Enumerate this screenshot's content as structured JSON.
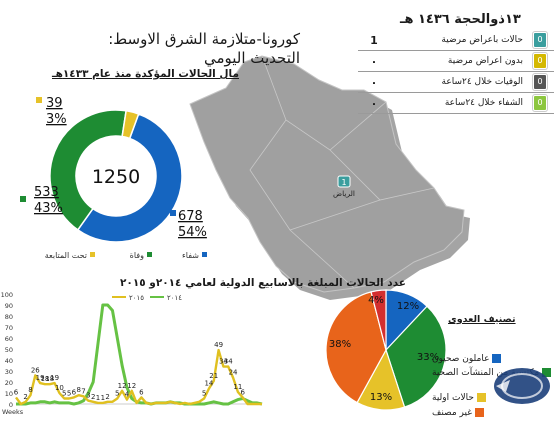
{
  "header": {
    "title_line1": "كورونا-متلازمة الشرق الاوسط:",
    "title_line2": "التحديث اليومي",
    "date": "١٣ذوالحجة ١٤٣٦ هـ"
  },
  "stats_rows": [
    {
      "value": "1",
      "label": "حالات باعراض مرضية",
      "badge": "0",
      "color": "#3a9e9e"
    },
    {
      "value": "٠",
      "label": "بدون اعراض مرضية",
      "badge": "0",
      "color": "#d4b800"
    },
    {
      "value": "٠",
      "label": "الوفيات خلال ٢٤ساعة",
      "badge": "0",
      "color": "#555555"
    },
    {
      "value": "٠",
      "label": "الشفاء خلال ٢٤ساعة",
      "badge": "0",
      "color": "#8cc63f"
    }
  ],
  "map": {
    "marker_value": "1",
    "marker_label": "الرياض",
    "colors": {
      "land": "#9e9e9e",
      "shadow": "#5a5a5a",
      "marker": "#3a9e9e"
    }
  },
  "donut_header": "مال الحالات المؤكدة منذ عام ١٤٣٣هـ",
  "weekly_header": "عدد الحالات المبلغة بالاسابيع الدولية لعامي ٢٠١٤و ٢٠١٥",
  "classification": {
    "title": "تصنيف العدوى",
    "legend": [
      "عاملون صحيون",
      "مكتسبة من المنشآت الصحية",
      "حالات اولية",
      "غير مصنف"
    ]
  },
  "colors": {
    "blue": "#1565c0",
    "green": "#1e8c33",
    "yellow": "#e6c229",
    "orange": "#e8641b",
    "red": "#d32f2f",
    "line2014": "#66c244",
    "line2015": "#e0c020"
  },
  "chart_data": [
    {
      "type": "pie",
      "subtype": "donut",
      "center_label": "1250",
      "slices": [
        {
          "label": "شفاء",
          "value": 678,
          "pct_label": "54%",
          "color": "#1565c0"
        },
        {
          "label": "وفاة",
          "value": 533,
          "pct_label": "43%",
          "color": "#1e8c33"
        },
        {
          "label": "تحت المتابعة",
          "value": 39,
          "pct_label": "3%",
          "color": "#e6c229"
        }
      ],
      "legend_placement": "bottom"
    },
    {
      "type": "line",
      "xlabel": "Weeks",
      "ylim": [
        0,
        100
      ],
      "yticks": [
        0,
        10,
        20,
        30,
        40,
        50,
        60,
        70,
        80,
        90,
        100
      ],
      "x": [
        1,
        2,
        3,
        4,
        5,
        6,
        7,
        8,
        9,
        10,
        11,
        12,
        13,
        14,
        15,
        16,
        17,
        18,
        19,
        20,
        21,
        22,
        23,
        24,
        25,
        26,
        27,
        28,
        29,
        30,
        31,
        32,
        33,
        34,
        35,
        36,
        37,
        38,
        39,
        40,
        41,
        42,
        43,
        44,
        45,
        46,
        47,
        48,
        49,
        50,
        51,
        52
      ],
      "series": [
        {
          "name": "٢٠١٤",
          "color": "#66c244",
          "values": [
            0,
            0,
            0,
            1,
            1,
            2,
            2,
            1,
            2,
            1,
            1,
            1,
            0,
            1,
            3,
            10,
            20,
            55,
            90,
            90,
            85,
            60,
            35,
            15,
            5,
            2,
            1,
            1,
            0,
            1,
            1,
            1,
            2,
            1,
            1,
            0,
            0,
            0,
            0,
            0,
            1,
            2,
            1,
            0,
            0,
            2,
            4,
            5,
            3,
            1,
            1,
            0
          ]
        },
        {
          "name": "٢٠١٥",
          "color": "#e0c020",
          "values": [
            6,
            0,
            2,
            8,
            26,
            19,
            18,
            18,
            19,
            10,
            5,
            5,
            6,
            8,
            7,
            3,
            2,
            1,
            1,
            2,
            2,
            5,
            12,
            4,
            12,
            1,
            6,
            1,
            0,
            1,
            1,
            1,
            2,
            1,
            0,
            1,
            0,
            1,
            2,
            5,
            14,
            21,
            49,
            34,
            34,
            24,
            11,
            6,
            0,
            0,
            0,
            0
          ],
          "data_labels": [
            {
              "x": 1,
              "text": "6"
            },
            {
              "x": 3,
              "text": "2"
            },
            {
              "x": 4,
              "text": "8"
            },
            {
              "x": 5,
              "text": "26"
            },
            {
              "x": 6,
              "text": "19"
            },
            {
              "x": 7,
              "text": "18"
            },
            {
              "x": 8,
              "text": "18"
            },
            {
              "x": 9,
              "text": "19"
            },
            {
              "x": 10,
              "text": "10"
            },
            {
              "x": 11,
              "text": "5"
            },
            {
              "x": 12,
              "text": "5"
            },
            {
              "x": 13,
              "text": "6"
            },
            {
              "x": 14,
              "text": "8"
            },
            {
              "x": 15,
              "text": "7"
            },
            {
              "x": 16,
              "text": "3"
            },
            {
              "x": 17,
              "text": "2"
            },
            {
              "x": 18,
              "text": "1"
            },
            {
              "x": 19,
              "text": "1"
            },
            {
              "x": 20,
              "text": "2"
            },
            {
              "x": 22,
              "text": "5"
            },
            {
              "x": 23,
              "text": "12"
            },
            {
              "x": 24,
              "text": "4"
            },
            {
              "x": 25,
              "text": "12"
            },
            {
              "x": 27,
              "text": "6"
            },
            {
              "x": 40,
              "text": "5"
            },
            {
              "x": 41,
              "text": "14"
            },
            {
              "x": 42,
              "text": "21"
            },
            {
              "x": 43,
              "text": "49"
            },
            {
              "x": 44,
              "text": "34"
            },
            {
              "x": 45,
              "text": "34"
            },
            {
              "x": 46,
              "text": "24"
            },
            {
              "x": 47,
              "text": "11"
            },
            {
              "x": 48,
              "text": "6"
            }
          ]
        }
      ],
      "legend_placement": "top"
    },
    {
      "type": "pie",
      "slices": [
        {
          "label": "عاملون صحيون",
          "value": 12,
          "pct_label": "12%",
          "color": "#1565c0"
        },
        {
          "label": "مكتسبة من المنشآت الصحية",
          "value": 33,
          "pct_label": "33%",
          "color": "#1e8c33"
        },
        {
          "label": "حالات اولية",
          "value": 13,
          "pct_label": "13%",
          "color": "#e6c229"
        },
        {
          "label": "غير مصنف",
          "value": 38,
          "pct_label": "38%",
          "color": "#e8641b"
        },
        {
          "label": "",
          "value": 4,
          "pct_label": "4%",
          "color": "#d32f2f"
        }
      ],
      "legend_placement": "right"
    }
  ]
}
